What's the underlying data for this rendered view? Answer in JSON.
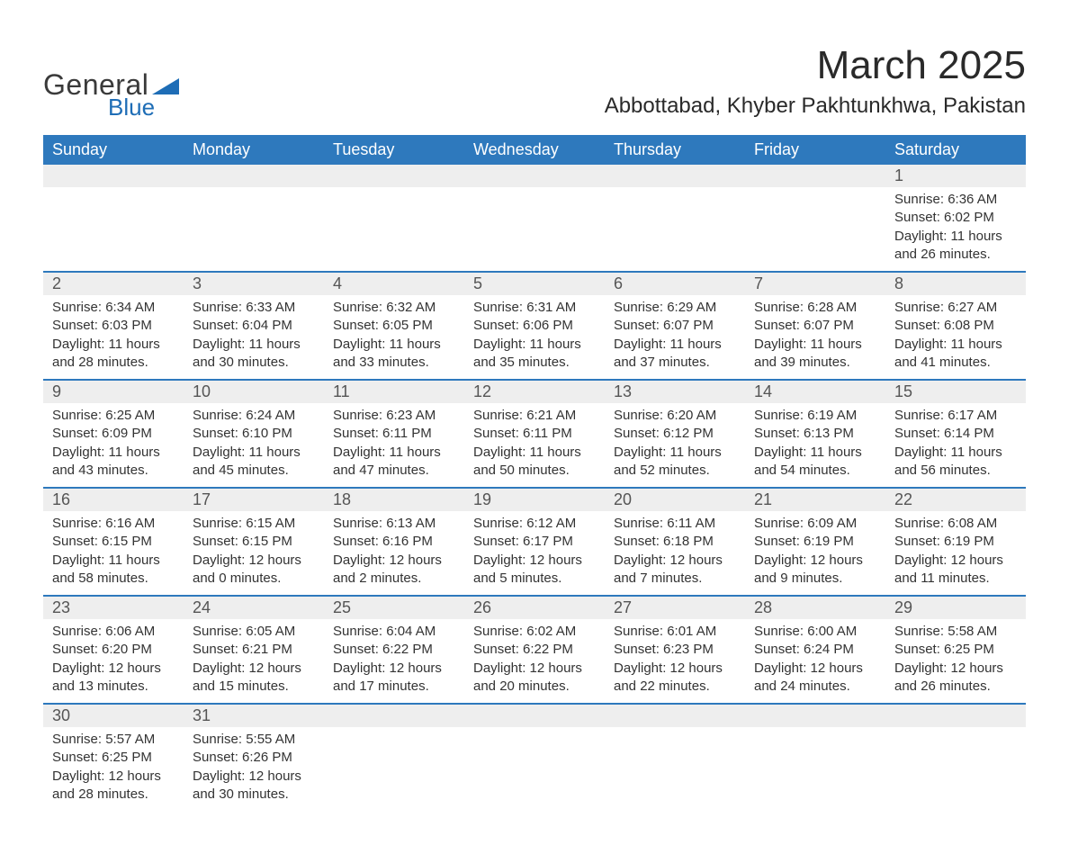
{
  "brand": {
    "word1": "General",
    "word2": "Blue"
  },
  "title": "March 2025",
  "location": "Abbottabad, Khyber Pakhtunkhwa, Pakistan",
  "colors": {
    "header_bg": "#2e79bd",
    "header_text": "#ffffff",
    "row_divider": "#2e79bd",
    "daynum_bg": "#eeeeee",
    "text": "#333333",
    "brand_blue": "#1e6db6",
    "brand_dark": "#3a3a3a",
    "page_bg": "#ffffff"
  },
  "typography": {
    "month_title_fontsize": 44,
    "location_fontsize": 24,
    "header_fontsize": 18,
    "daynum_fontsize": 18,
    "body_fontsize": 15
  },
  "columns": [
    "Sunday",
    "Monday",
    "Tuesday",
    "Wednesday",
    "Thursday",
    "Friday",
    "Saturday"
  ],
  "weeks": [
    [
      null,
      null,
      null,
      null,
      null,
      null,
      {
        "day": "1",
        "sunrise": "Sunrise: 6:36 AM",
        "sunset": "Sunset: 6:02 PM",
        "daylight": "Daylight: 11 hours and 26 minutes."
      }
    ],
    [
      {
        "day": "2",
        "sunrise": "Sunrise: 6:34 AM",
        "sunset": "Sunset: 6:03 PM",
        "daylight": "Daylight: 11 hours and 28 minutes."
      },
      {
        "day": "3",
        "sunrise": "Sunrise: 6:33 AM",
        "sunset": "Sunset: 6:04 PM",
        "daylight": "Daylight: 11 hours and 30 minutes."
      },
      {
        "day": "4",
        "sunrise": "Sunrise: 6:32 AM",
        "sunset": "Sunset: 6:05 PM",
        "daylight": "Daylight: 11 hours and 33 minutes."
      },
      {
        "day": "5",
        "sunrise": "Sunrise: 6:31 AM",
        "sunset": "Sunset: 6:06 PM",
        "daylight": "Daylight: 11 hours and 35 minutes."
      },
      {
        "day": "6",
        "sunrise": "Sunrise: 6:29 AM",
        "sunset": "Sunset: 6:07 PM",
        "daylight": "Daylight: 11 hours and 37 minutes."
      },
      {
        "day": "7",
        "sunrise": "Sunrise: 6:28 AM",
        "sunset": "Sunset: 6:07 PM",
        "daylight": "Daylight: 11 hours and 39 minutes."
      },
      {
        "day": "8",
        "sunrise": "Sunrise: 6:27 AM",
        "sunset": "Sunset: 6:08 PM",
        "daylight": "Daylight: 11 hours and 41 minutes."
      }
    ],
    [
      {
        "day": "9",
        "sunrise": "Sunrise: 6:25 AM",
        "sunset": "Sunset: 6:09 PM",
        "daylight": "Daylight: 11 hours and 43 minutes."
      },
      {
        "day": "10",
        "sunrise": "Sunrise: 6:24 AM",
        "sunset": "Sunset: 6:10 PM",
        "daylight": "Daylight: 11 hours and 45 minutes."
      },
      {
        "day": "11",
        "sunrise": "Sunrise: 6:23 AM",
        "sunset": "Sunset: 6:11 PM",
        "daylight": "Daylight: 11 hours and 47 minutes."
      },
      {
        "day": "12",
        "sunrise": "Sunrise: 6:21 AM",
        "sunset": "Sunset: 6:11 PM",
        "daylight": "Daylight: 11 hours and 50 minutes."
      },
      {
        "day": "13",
        "sunrise": "Sunrise: 6:20 AM",
        "sunset": "Sunset: 6:12 PM",
        "daylight": "Daylight: 11 hours and 52 minutes."
      },
      {
        "day": "14",
        "sunrise": "Sunrise: 6:19 AM",
        "sunset": "Sunset: 6:13 PM",
        "daylight": "Daylight: 11 hours and 54 minutes."
      },
      {
        "day": "15",
        "sunrise": "Sunrise: 6:17 AM",
        "sunset": "Sunset: 6:14 PM",
        "daylight": "Daylight: 11 hours and 56 minutes."
      }
    ],
    [
      {
        "day": "16",
        "sunrise": "Sunrise: 6:16 AM",
        "sunset": "Sunset: 6:15 PM",
        "daylight": "Daylight: 11 hours and 58 minutes."
      },
      {
        "day": "17",
        "sunrise": "Sunrise: 6:15 AM",
        "sunset": "Sunset: 6:15 PM",
        "daylight": "Daylight: 12 hours and 0 minutes."
      },
      {
        "day": "18",
        "sunrise": "Sunrise: 6:13 AM",
        "sunset": "Sunset: 6:16 PM",
        "daylight": "Daylight: 12 hours and 2 minutes."
      },
      {
        "day": "19",
        "sunrise": "Sunrise: 6:12 AM",
        "sunset": "Sunset: 6:17 PM",
        "daylight": "Daylight: 12 hours and 5 minutes."
      },
      {
        "day": "20",
        "sunrise": "Sunrise: 6:11 AM",
        "sunset": "Sunset: 6:18 PM",
        "daylight": "Daylight: 12 hours and 7 minutes."
      },
      {
        "day": "21",
        "sunrise": "Sunrise: 6:09 AM",
        "sunset": "Sunset: 6:19 PM",
        "daylight": "Daylight: 12 hours and 9 minutes."
      },
      {
        "day": "22",
        "sunrise": "Sunrise: 6:08 AM",
        "sunset": "Sunset: 6:19 PM",
        "daylight": "Daylight: 12 hours and 11 minutes."
      }
    ],
    [
      {
        "day": "23",
        "sunrise": "Sunrise: 6:06 AM",
        "sunset": "Sunset: 6:20 PM",
        "daylight": "Daylight: 12 hours and 13 minutes."
      },
      {
        "day": "24",
        "sunrise": "Sunrise: 6:05 AM",
        "sunset": "Sunset: 6:21 PM",
        "daylight": "Daylight: 12 hours and 15 minutes."
      },
      {
        "day": "25",
        "sunrise": "Sunrise: 6:04 AM",
        "sunset": "Sunset: 6:22 PM",
        "daylight": "Daylight: 12 hours and 17 minutes."
      },
      {
        "day": "26",
        "sunrise": "Sunrise: 6:02 AM",
        "sunset": "Sunset: 6:22 PM",
        "daylight": "Daylight: 12 hours and 20 minutes."
      },
      {
        "day": "27",
        "sunrise": "Sunrise: 6:01 AM",
        "sunset": "Sunset: 6:23 PM",
        "daylight": "Daylight: 12 hours and 22 minutes."
      },
      {
        "day": "28",
        "sunrise": "Sunrise: 6:00 AM",
        "sunset": "Sunset: 6:24 PM",
        "daylight": "Daylight: 12 hours and 24 minutes."
      },
      {
        "day": "29",
        "sunrise": "Sunrise: 5:58 AM",
        "sunset": "Sunset: 6:25 PM",
        "daylight": "Daylight: 12 hours and 26 minutes."
      }
    ],
    [
      {
        "day": "30",
        "sunrise": "Sunrise: 5:57 AM",
        "sunset": "Sunset: 6:25 PM",
        "daylight": "Daylight: 12 hours and 28 minutes."
      },
      {
        "day": "31",
        "sunrise": "Sunrise: 5:55 AM",
        "sunset": "Sunset: 6:26 PM",
        "daylight": "Daylight: 12 hours and 30 minutes."
      },
      null,
      null,
      null,
      null,
      null
    ]
  ]
}
